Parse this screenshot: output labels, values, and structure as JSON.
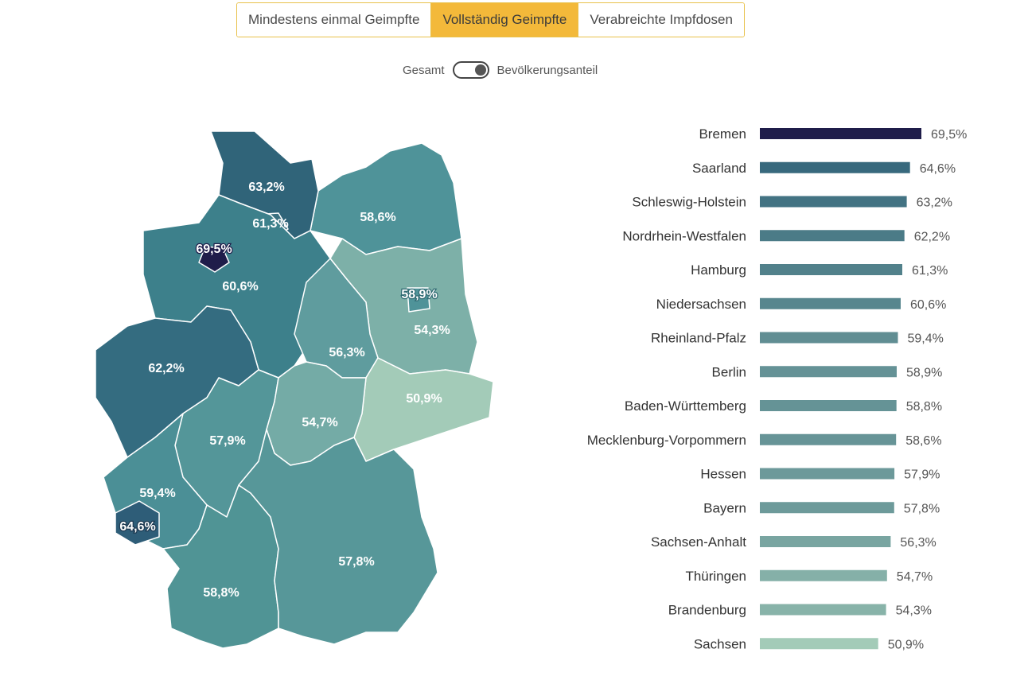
{
  "tabs": [
    {
      "label": "Mindestens einmal Geimpfte",
      "active": false
    },
    {
      "label": "Vollständig Geimpfte",
      "active": true
    },
    {
      "label": "Verabreichte Impfdosen",
      "active": false
    }
  ],
  "toggle": {
    "left_label": "Gesamt",
    "right_label": "Bevölkerungsanteil",
    "state": "Bevölkerungsanteil"
  },
  "colors": {
    "accent": "#f3b93a",
    "bar_max": "#1f1d4a",
    "bar_min": "#a3cbb8"
  },
  "map_labels": [
    {
      "state": "Schleswig-Holstein",
      "text": "63,2%"
    },
    {
      "state": "Hamburg",
      "text": "61,3%"
    },
    {
      "state": "Mecklenburg-Vorpommern",
      "text": "58,6%"
    },
    {
      "state": "Bremen",
      "text": "69,5%"
    },
    {
      "state": "Niedersachsen",
      "text": "60,6%"
    },
    {
      "state": "Berlin",
      "text": "58,9%"
    },
    {
      "state": "Brandenburg",
      "text": "54,3%"
    },
    {
      "state": "Sachsen-Anhalt",
      "text": "56,3%"
    },
    {
      "state": "Nordrhein-Westfalen",
      "text": "62,2%"
    },
    {
      "state": "Sachsen",
      "text": "50,9%"
    },
    {
      "state": "Thüringen",
      "text": "54,7%"
    },
    {
      "state": "Hessen",
      "text": "57,9%"
    },
    {
      "state": "Rheinland-Pfalz",
      "text": "59,4%"
    },
    {
      "state": "Saarland",
      "text": "64,6%"
    },
    {
      "state": "Bayern",
      "text": "57,8%"
    },
    {
      "state": "Baden-Württemberg",
      "text": "58,8%"
    }
  ],
  "chart_data": {
    "type": "bar",
    "orientation": "horizontal",
    "categories": [
      "Bremen",
      "Saarland",
      "Schleswig-Holstein",
      "Nordrhein-Westfalen",
      "Hamburg",
      "Niedersachsen",
      "Rheinland-Pfalz",
      "Berlin",
      "Baden-Württemberg",
      "Mecklenburg-Vorpommern",
      "Hessen",
      "Bayern",
      "Sachsen-Anhalt",
      "Thüringen",
      "Brandenburg",
      "Sachsen"
    ],
    "values": [
      69.5,
      64.6,
      63.2,
      62.2,
      61.3,
      60.6,
      59.4,
      58.9,
      58.8,
      58.6,
      57.9,
      57.8,
      56.3,
      54.7,
      54.3,
      50.9
    ],
    "value_labels": [
      "69,5%",
      "64,6%",
      "63,2%",
      "62,2%",
      "61,3%",
      "60,6%",
      "59,4%",
      "58,9%",
      "58,8%",
      "58,6%",
      "57,9%",
      "57,8%",
      "56,3%",
      "54,7%",
      "54,3%",
      "50,9%"
    ],
    "xlim": [
      0,
      69.5
    ]
  }
}
